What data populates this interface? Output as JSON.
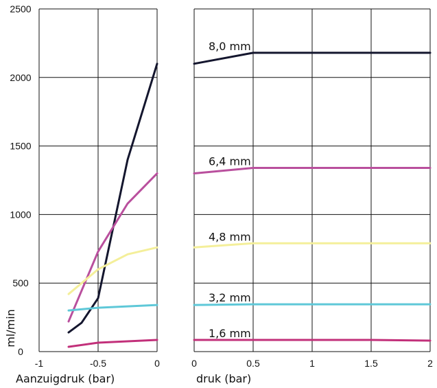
{
  "chart_data": [
    {
      "type": "line",
      "xlabel": "Aanzuigdruk (bar)",
      "ylabel": "ml/min",
      "xlim": [
        -1,
        0
      ],
      "ylim": [
        0,
        2500
      ],
      "xticks": [
        "-1",
        "-0.5",
        "0"
      ],
      "yticks": [
        "0",
        "500",
        "1000",
        "1500",
        "2000",
        "2500"
      ],
      "grid": true,
      "series": [
        {
          "color": "#14162e",
          "x": [
            -0.75,
            -0.64,
            -0.5,
            -0.25,
            0
          ],
          "y": [
            140,
            210,
            390,
            1400,
            2100
          ]
        },
        {
          "color": "#b94f9d",
          "x": [
            -0.75,
            -0.5,
            -0.25,
            0
          ],
          "y": [
            220,
            730,
            1080,
            1300
          ]
        },
        {
          "color": "#f4ef9a",
          "x": [
            -0.75,
            -0.5,
            -0.25,
            0
          ],
          "y": [
            420,
            600,
            710,
            760
          ]
        },
        {
          "color": "#5ec8d8",
          "x": [
            -0.75,
            -0.5,
            -0.25,
            0
          ],
          "y": [
            300,
            320,
            330,
            340
          ]
        },
        {
          "color": "#c2307a",
          "x": [
            -0.75,
            -0.5,
            0
          ],
          "y": [
            35,
            65,
            85
          ]
        }
      ]
    },
    {
      "type": "line",
      "xlabel": "druk (bar)",
      "xlim": [
        0,
        2
      ],
      "ylim": [
        0,
        2500
      ],
      "xticks": [
        "0",
        "0.5",
        "1",
        "1.5",
        "2"
      ],
      "grid": true,
      "series": [
        {
          "name": "8,0 mm",
          "color": "#14162e",
          "x": [
            0,
            0.5,
            2
          ],
          "y": [
            2100,
            2180,
            2180
          ]
        },
        {
          "name": "6,4 mm",
          "color": "#b94f9d",
          "x": [
            0,
            0.5,
            2
          ],
          "y": [
            1300,
            1340,
            1340
          ]
        },
        {
          "name": "4,8 mm",
          "color": "#f4ef9a",
          "x": [
            0,
            0.5,
            2
          ],
          "y": [
            760,
            790,
            790
          ]
        },
        {
          "name": "3,2 mm",
          "color": "#5ec8d8",
          "x": [
            0,
            0.5,
            2
          ],
          "y": [
            340,
            345,
            345
          ]
        },
        {
          "name": "1,6 mm",
          "color": "#c2307a",
          "x": [
            0,
            0.5,
            1.5,
            2
          ],
          "y": [
            85,
            85,
            85,
            80
          ]
        }
      ]
    }
  ]
}
